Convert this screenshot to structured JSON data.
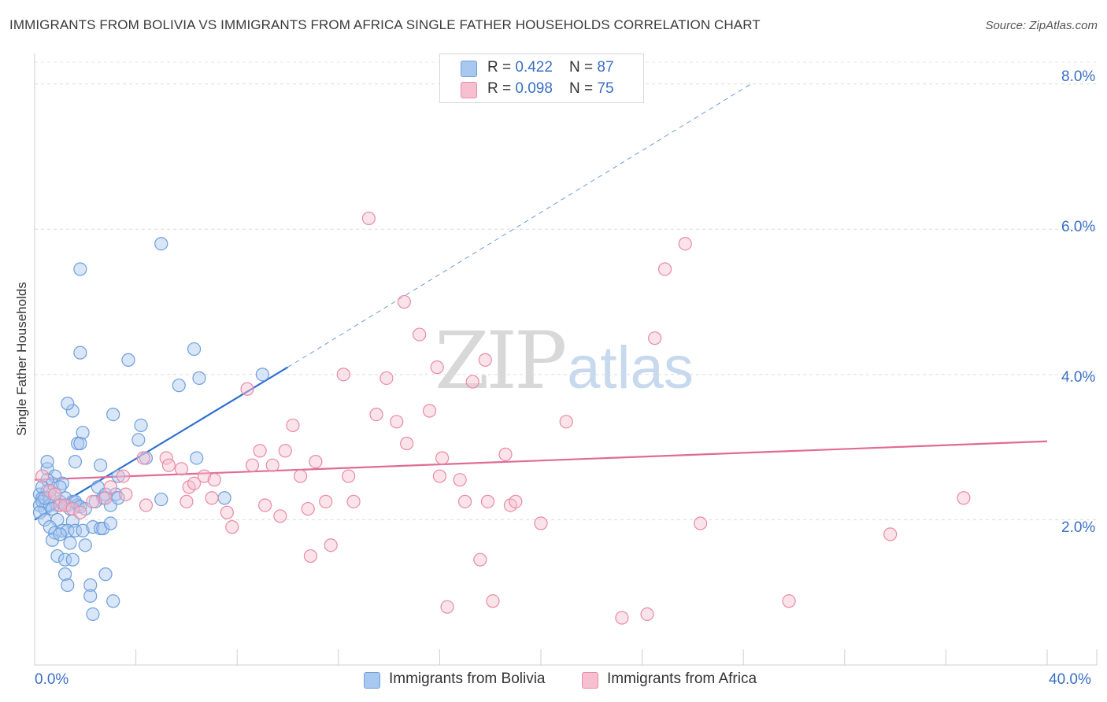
{
  "header": {
    "title": "IMMIGRANTS FROM BOLIVIA VS IMMIGRANTS FROM AFRICA SINGLE FATHER HOUSEHOLDS CORRELATION CHART",
    "source": "Source: ZipAtlas.com"
  },
  "watermark": {
    "zip": "ZIP",
    "atlas": "atlas"
  },
  "legend": {
    "r_label": "R = ",
    "n_label": "N = ",
    "items": [
      {
        "r": "0.422",
        "n": "87",
        "color": "#a9c8ef",
        "border": "#6f9fdc"
      },
      {
        "r": "0.098",
        "n": "75",
        "color": "#f7c0d0",
        "border": "#e98aa8"
      }
    ]
  },
  "chart_data": {
    "type": "scatter",
    "title": "IMMIGRANTS FROM BOLIVIA VS IMMIGRANTS FROM AFRICA SINGLE FATHER HOUSEHOLDS CORRELATION CHART",
    "xlabel": "",
    "ylabel": "Single Father Households",
    "xlim": [
      0,
      40
    ],
    "ylim": [
      0,
      8.3
    ],
    "x_tick_labels": [
      "0.0%",
      "40.0%"
    ],
    "y_ticks": [
      2,
      4,
      6,
      8
    ],
    "y_tick_labels": [
      "2.0%",
      "4.0%",
      "6.0%",
      "8.0%"
    ],
    "grid": "horizontal dashed",
    "series": [
      {
        "name": "Immigrants from Bolivia",
        "color": "#6f9fdc",
        "fill": "#a9c8ef",
        "line_color": "#2f6fcf",
        "trend": {
          "x0": 0,
          "y0": 2.0,
          "x1": 10,
          "y1": 4.1,
          "dashed_to_x": 28.3,
          "dashed_to_y": 8.0
        },
        "points": [
          [
            0.2,
            2.35
          ],
          [
            0.3,
            2.3
          ],
          [
            0.2,
            2.2
          ],
          [
            0.4,
            2.15
          ],
          [
            0.3,
            2.25
          ],
          [
            0.5,
            2.4
          ],
          [
            0.6,
            2.3
          ],
          [
            0.2,
            2.1
          ],
          [
            0.4,
            2.0
          ],
          [
            0.7,
            2.5
          ],
          [
            0.5,
            2.7
          ],
          [
            0.8,
            2.6
          ],
          [
            0.9,
            2.2
          ],
          [
            1.0,
            2.25
          ],
          [
            1.2,
            2.3
          ],
          [
            1.1,
            2.5
          ],
          [
            1.3,
            2.2
          ],
          [
            1.5,
            2.25
          ],
          [
            1.7,
            2.2
          ],
          [
            1.4,
            2.15
          ],
          [
            0.6,
            2.2
          ],
          [
            0.8,
            2.35
          ],
          [
            1.0,
            2.45
          ],
          [
            0.5,
            2.55
          ],
          [
            0.3,
            2.45
          ],
          [
            0.7,
            2.15
          ],
          [
            1.6,
            2.25
          ],
          [
            1.8,
            2.18
          ],
          [
            2.0,
            2.15
          ],
          [
            0.9,
            2.0
          ],
          [
            1.5,
            1.98
          ],
          [
            0.6,
            1.9
          ],
          [
            1.1,
            1.85
          ],
          [
            0.8,
            1.82
          ],
          [
            1.3,
            1.85
          ],
          [
            0.7,
            1.72
          ],
          [
            1.6,
            1.85
          ],
          [
            1.9,
            1.85
          ],
          [
            2.3,
            1.9
          ],
          [
            2.6,
            1.88
          ],
          [
            2.7,
            1.88
          ],
          [
            3.0,
            1.95
          ],
          [
            1.4,
            1.68
          ],
          [
            2.0,
            1.65
          ],
          [
            0.9,
            1.5
          ],
          [
            1.2,
            1.45
          ],
          [
            1.5,
            1.45
          ],
          [
            1.2,
            1.25
          ],
          [
            2.8,
            1.25
          ],
          [
            1.3,
            1.1
          ],
          [
            2.2,
            1.1
          ],
          [
            2.2,
            0.95
          ],
          [
            3.1,
            0.88
          ],
          [
            2.3,
            0.7
          ],
          [
            0.5,
            2.8
          ],
          [
            1.6,
            2.8
          ],
          [
            2.6,
            2.75
          ],
          [
            3.3,
            2.6
          ],
          [
            1.7,
            3.05
          ],
          [
            1.8,
            3.05
          ],
          [
            1.9,
            3.2
          ],
          [
            1.5,
            3.5
          ],
          [
            1.3,
            3.6
          ],
          [
            3.1,
            3.45
          ],
          [
            4.2,
            3.3
          ],
          [
            4.1,
            3.1
          ],
          [
            4.4,
            2.85
          ],
          [
            6.4,
            2.85
          ],
          [
            1.8,
            4.3
          ],
          [
            3.7,
            4.2
          ],
          [
            5.7,
            3.85
          ],
          [
            6.3,
            4.35
          ],
          [
            6.5,
            3.95
          ],
          [
            9.0,
            4.0
          ],
          [
            1.8,
            5.45
          ],
          [
            5.0,
            5.8
          ],
          [
            2.5,
            2.45
          ],
          [
            2.7,
            2.3
          ],
          [
            2.8,
            2.35
          ],
          [
            3.0,
            2.2
          ],
          [
            3.2,
            2.35
          ],
          [
            3.3,
            2.3
          ],
          [
            5.0,
            2.28
          ],
          [
            7.5,
            2.3
          ],
          [
            2.4,
            2.25
          ],
          [
            1.0,
            1.8
          ],
          [
            0.4,
            2.3
          ]
        ]
      },
      {
        "name": "Immigrants from Africa",
        "color": "#e98aa8",
        "fill": "#f7c0d0",
        "line_color": "#e06b95",
        "trend": {
          "x0": 0,
          "y0": 2.55,
          "x1": 40,
          "y1": 3.08
        },
        "points": [
          [
            0.3,
            2.6
          ],
          [
            0.6,
            2.4
          ],
          [
            0.8,
            2.35
          ],
          [
            1.0,
            2.2
          ],
          [
            1.2,
            2.2
          ],
          [
            1.5,
            2.15
          ],
          [
            1.8,
            2.1
          ],
          [
            2.3,
            2.25
          ],
          [
            2.8,
            2.3
          ],
          [
            3.0,
            2.45
          ],
          [
            3.5,
            2.6
          ],
          [
            3.6,
            2.35
          ],
          [
            4.3,
            2.85
          ],
          [
            4.4,
            2.2
          ],
          [
            5.2,
            2.85
          ],
          [
            5.8,
            2.7
          ],
          [
            5.3,
            2.75
          ],
          [
            6.1,
            2.45
          ],
          [
            6.3,
            2.5
          ],
          [
            6.7,
            2.6
          ],
          [
            7.1,
            2.55
          ],
          [
            6.0,
            2.25
          ],
          [
            7.0,
            2.3
          ],
          [
            7.6,
            2.1
          ],
          [
            7.8,
            1.9
          ],
          [
            8.4,
            3.8
          ],
          [
            8.6,
            2.75
          ],
          [
            8.9,
            2.95
          ],
          [
            9.1,
            2.2
          ],
          [
            9.4,
            2.75
          ],
          [
            9.7,
            2.05
          ],
          [
            9.9,
            2.95
          ],
          [
            10.2,
            3.3
          ],
          [
            10.5,
            2.6
          ],
          [
            10.8,
            2.15
          ],
          [
            10.9,
            1.5
          ],
          [
            11.1,
            2.8
          ],
          [
            11.5,
            2.25
          ],
          [
            11.7,
            1.65
          ],
          [
            12.2,
            4.0
          ],
          [
            12.4,
            2.6
          ],
          [
            12.6,
            2.25
          ],
          [
            13.2,
            6.15
          ],
          [
            13.5,
            3.45
          ],
          [
            13.9,
            3.95
          ],
          [
            14.3,
            3.35
          ],
          [
            14.6,
            5.0
          ],
          [
            14.7,
            3.05
          ],
          [
            15.2,
            4.55
          ],
          [
            15.6,
            3.5
          ],
          [
            15.9,
            4.1
          ],
          [
            16.0,
            2.6
          ],
          [
            16.1,
            2.85
          ],
          [
            16.3,
            0.8
          ],
          [
            16.8,
            2.55
          ],
          [
            17.0,
            2.25
          ],
          [
            17.3,
            3.9
          ],
          [
            17.6,
            1.45
          ],
          [
            17.8,
            4.2
          ],
          [
            17.9,
            2.25
          ],
          [
            18.1,
            0.88
          ],
          [
            18.6,
            2.9
          ],
          [
            18.8,
            2.2
          ],
          [
            19.0,
            2.25
          ],
          [
            20.0,
            1.95
          ],
          [
            21.0,
            3.35
          ],
          [
            23.2,
            0.65
          ],
          [
            24.2,
            0.7
          ],
          [
            24.5,
            4.5
          ],
          [
            24.9,
            5.45
          ],
          [
            25.7,
            5.8
          ],
          [
            26.3,
            1.95
          ],
          [
            29.8,
            0.88
          ],
          [
            33.8,
            1.8
          ],
          [
            36.7,
            2.3
          ]
        ]
      }
    ]
  }
}
